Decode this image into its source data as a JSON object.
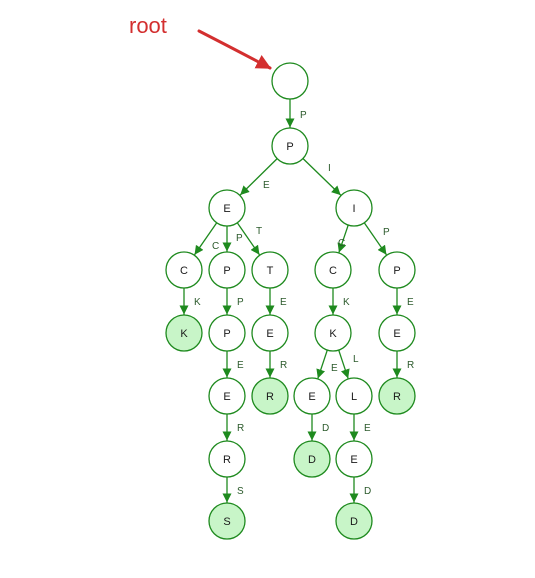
{
  "annotation": {
    "text": "root",
    "color": "#d32f2f"
  },
  "colors": {
    "stroke": "#1e8a1e",
    "node_fill": "#ffffff",
    "terminal_fill": "#c8f5c8"
  },
  "nodes": [
    {
      "id": "n0",
      "label": "",
      "terminal": false
    },
    {
      "id": "n1",
      "label": "P",
      "terminal": false
    },
    {
      "id": "n2",
      "label": "E",
      "terminal": false
    },
    {
      "id": "n3",
      "label": "I",
      "terminal": false
    },
    {
      "id": "n4",
      "label": "C",
      "terminal": false
    },
    {
      "id": "n5",
      "label": "P",
      "terminal": false
    },
    {
      "id": "n6",
      "label": "T",
      "terminal": false
    },
    {
      "id": "n7",
      "label": "C",
      "terminal": false
    },
    {
      "id": "n8",
      "label": "P",
      "terminal": false
    },
    {
      "id": "n9",
      "label": "K",
      "terminal": true
    },
    {
      "id": "n10",
      "label": "P",
      "terminal": false
    },
    {
      "id": "n11",
      "label": "E",
      "terminal": false
    },
    {
      "id": "n12",
      "label": "K",
      "terminal": false
    },
    {
      "id": "n13",
      "label": "E",
      "terminal": false
    },
    {
      "id": "n14",
      "label": "E",
      "terminal": false
    },
    {
      "id": "n15",
      "label": "R",
      "terminal": true
    },
    {
      "id": "n16",
      "label": "E",
      "terminal": false
    },
    {
      "id": "n17",
      "label": "L",
      "terminal": false
    },
    {
      "id": "n18",
      "label": "R",
      "terminal": true
    },
    {
      "id": "n19",
      "label": "R",
      "terminal": false
    },
    {
      "id": "n20",
      "label": "D",
      "terminal": true
    },
    {
      "id": "n21",
      "label": "E",
      "terminal": false
    },
    {
      "id": "n22",
      "label": "S",
      "terminal": true
    },
    {
      "id": "n23",
      "label": "D",
      "terminal": true
    }
  ],
  "edges": [
    {
      "from": "n0",
      "to": "n1",
      "label": "P"
    },
    {
      "from": "n1",
      "to": "n2",
      "label": "E"
    },
    {
      "from": "n1",
      "to": "n3",
      "label": "I"
    },
    {
      "from": "n2",
      "to": "n4",
      "label": "C"
    },
    {
      "from": "n2",
      "to": "n5",
      "label": "P"
    },
    {
      "from": "n2",
      "to": "n6",
      "label": "T"
    },
    {
      "from": "n3",
      "to": "n7",
      "label": "C"
    },
    {
      "from": "n3",
      "to": "n8",
      "label": "P"
    },
    {
      "from": "n4",
      "to": "n9",
      "label": "K"
    },
    {
      "from": "n5",
      "to": "n10",
      "label": "P"
    },
    {
      "from": "n6",
      "to": "n11",
      "label": "E"
    },
    {
      "from": "n7",
      "to": "n12",
      "label": "K"
    },
    {
      "from": "n8",
      "to": "n13",
      "label": "E"
    },
    {
      "from": "n10",
      "to": "n14",
      "label": "E"
    },
    {
      "from": "n11",
      "to": "n15",
      "label": "R"
    },
    {
      "from": "n12",
      "to": "n16",
      "label": "E"
    },
    {
      "from": "n12",
      "to": "n17",
      "label": "L"
    },
    {
      "from": "n13",
      "to": "n18",
      "label": "R"
    },
    {
      "from": "n14",
      "to": "n19",
      "label": "R"
    },
    {
      "from": "n16",
      "to": "n20",
      "label": "D"
    },
    {
      "from": "n17",
      "to": "n21",
      "label": "E"
    },
    {
      "from": "n19",
      "to": "n22",
      "label": "S"
    },
    {
      "from": "n21",
      "to": "n23",
      "label": "D"
    }
  ]
}
